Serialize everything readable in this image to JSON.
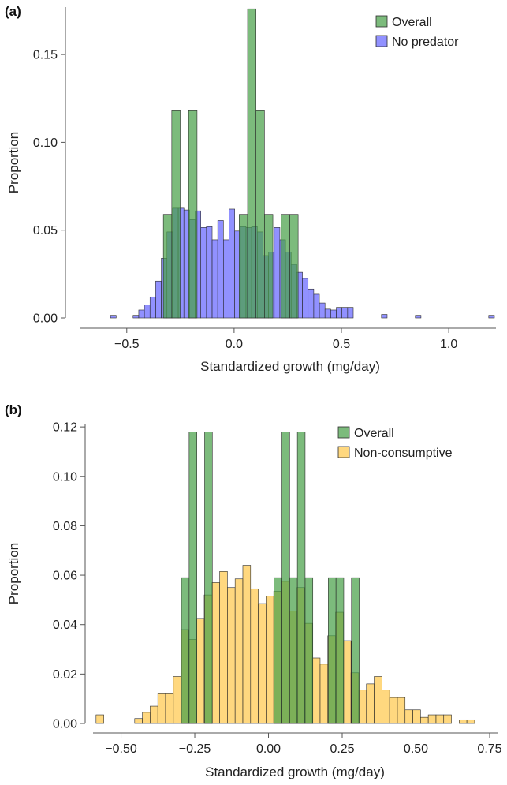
{
  "colors": {
    "overall": "#4aa14a",
    "no_predator": "#6666ff",
    "non_consumptive": "#ffc94d",
    "bar_edge": "#2b2b2b"
  },
  "chart_data": [
    {
      "type": "bar",
      "panel": "(a)",
      "xlabel": "Standardized growth (mg/day)",
      "ylabel": "Proportion",
      "xlim": [
        -0.76,
        1.22
      ],
      "ylim": [
        0,
        0.177
      ],
      "xticks": [
        -0.5,
        0.0,
        0.5,
        1.0
      ],
      "xtick_labels": [
        "−0.5",
        "0.0",
        "0.5",
        "1.0"
      ],
      "yticks": [
        0.0,
        0.05,
        0.1,
        0.15
      ],
      "ytick_labels": [
        "0.00",
        "0.05",
        "0.10",
        "0.15"
      ],
      "legend_position": "top-right",
      "series": [
        {
          "name": "Overall",
          "color_key": "overall",
          "opacity": 0.72,
          "bin_edges": [
            -0.3296,
            -0.2904,
            -0.2511,
            -0.2119,
            -0.1726,
            -0.1334,
            -0.0941,
            -0.0549,
            -0.0156,
            0.0236,
            0.0629,
            0.1021,
            0.1414,
            0.1806,
            0.2199,
            0.2591,
            0.2984,
            0.3376
          ],
          "values": [
            0.059,
            0.118,
            0.0,
            0.118,
            0.0,
            0.0,
            0.0,
            0.0,
            0.0,
            0.059,
            0.176,
            0.118,
            0.059,
            0.0,
            0.059,
            0.059,
            0.0
          ]
        },
        {
          "name": "No predator",
          "color_key": "no_predator",
          "opacity": 0.72,
          "bin_edges": [
            -0.5758,
            -0.5495,
            -0.5232,
            -0.4969,
            -0.4706,
            -0.4443,
            -0.418,
            -0.3917,
            -0.3654,
            -0.3391,
            -0.3128,
            -0.2865,
            -0.2602,
            -0.2339,
            -0.2076,
            -0.1813,
            -0.155,
            -0.1287,
            -0.1024,
            -0.0761,
            -0.0498,
            -0.0235,
            0.0028,
            0.0291,
            0.0554,
            0.0817,
            0.108,
            0.1343,
            0.1606,
            0.1869,
            0.2132,
            0.2395,
            0.2658,
            0.2921,
            0.3184,
            0.3447,
            0.371,
            0.3973,
            0.4236,
            0.4499,
            0.4762,
            0.5025,
            0.5288,
            0.5551,
            0.5814,
            0.6077,
            0.634,
            0.6603,
            0.6866,
            0.7129,
            0.7392,
            0.7655,
            0.7918,
            0.8181,
            0.8444,
            0.8707,
            0.897,
            0.9233,
            0.9496,
            0.9759,
            1.0022,
            1.0285,
            1.0548,
            1.0811,
            1.1074,
            1.1337,
            1.16,
            1.1863,
            1.2126
          ],
          "values": [
            0.0015,
            0.0,
            0.0,
            0.0,
            0.0015,
            0.0045,
            0.0075,
            0.012,
            0.021,
            0.034,
            0.049,
            0.0625,
            0.0625,
            0.0615,
            0.056,
            0.061,
            0.0515,
            0.052,
            0.0445,
            0.0555,
            0.0445,
            0.062,
            0.0495,
            0.052,
            0.0515,
            0.052,
            0.049,
            0.0355,
            0.0375,
            0.0515,
            0.0445,
            0.0375,
            0.0305,
            0.026,
            0.0225,
            0.0165,
            0.0135,
            0.0085,
            0.005,
            0.0045,
            0.006,
            0.006,
            0.006,
            0.0,
            0.0,
            0.0,
            0.0,
            0.0,
            0.002,
            0.0,
            0.0,
            0.0,
            0.0,
            0.0,
            0.0015,
            0.0,
            0.0,
            0.0,
            0.0,
            0.0,
            0.0,
            0.0,
            0.0,
            0.0,
            0.0,
            0.0,
            0.0,
            0.0015
          ]
        }
      ]
    },
    {
      "type": "bar",
      "panel": "(b)",
      "xlabel": "Standardized growth (mg/day)",
      "ylabel": "Proportion",
      "xlim": [
        -0.595,
        0.75
      ],
      "ylim": [
        0,
        0.121
      ],
      "xticks": [
        -0.5,
        -0.25,
        0.0,
        0.25,
        0.5,
        0.75
      ],
      "xtick_labels": [
        "−0.50",
        "−0.25",
        "0.00",
        "0.25",
        "0.50",
        "0.75"
      ],
      "yticks": [
        0.0,
        0.02,
        0.04,
        0.06,
        0.08,
        0.1,
        0.12
      ],
      "ytick_labels": [
        "0.00",
        "0.02",
        "0.04",
        "0.06",
        "0.08",
        "0.10",
        "0.12"
      ],
      "legend_position": "top-right",
      "series": [
        {
          "name": "Overall",
          "color_key": "overall",
          "opacity": 0.72,
          "bin_edges": [
            -0.2954,
            -0.2692,
            -0.2429,
            -0.2167,
            -0.1905,
            -0.1643,
            -0.1381,
            -0.1119,
            -0.0856,
            -0.0594,
            -0.0332,
            -0.007,
            0.0192,
            0.0455,
            0.0717,
            0.0979,
            0.1241,
            0.1503,
            0.1766,
            0.2028,
            0.229,
            0.2552,
            0.2814,
            0.3077,
            0.3339
          ],
          "values": [
            0.059,
            0.118,
            0.0,
            0.118,
            0.0,
            0.0,
            0.0,
            0.0,
            0.0,
            0.0,
            0.0,
            0.0,
            0.059,
            0.118,
            0.059,
            0.118,
            0.059,
            0.0,
            0.0,
            0.059,
            0.059,
            0.0,
            0.059,
            0.0
          ]
        },
        {
          "name": "Non-consumptive",
          "color_key": "non_consumptive",
          "opacity": 0.72,
          "bin_edges": [
            -0.5848,
            -0.5586,
            -0.5324,
            -0.5062,
            -0.48,
            -0.4538,
            -0.4276,
            -0.4014,
            -0.3752,
            -0.349,
            -0.3228,
            -0.2966,
            -0.2704,
            -0.2442,
            -0.218,
            -0.1918,
            -0.1656,
            -0.1394,
            -0.1132,
            -0.087,
            -0.0608,
            -0.0346,
            -0.0084,
            0.0178,
            0.044,
            0.0702,
            0.0964,
            0.1226,
            0.1488,
            0.175,
            0.2012,
            0.2274,
            0.2536,
            0.2798,
            0.306,
            0.3322,
            0.3584,
            0.3846,
            0.4108,
            0.437,
            0.4632,
            0.4894,
            0.5156,
            0.5418,
            0.568,
            0.5942,
            0.6204,
            0.6466,
            0.6728,
            0.699
          ],
          "values": [
            0.0035,
            0.0,
            0.0,
            0.0,
            0.0,
            0.002,
            0.0045,
            0.007,
            0.012,
            0.012,
            0.019,
            0.038,
            0.034,
            0.0425,
            0.052,
            0.057,
            0.0615,
            0.055,
            0.0585,
            0.064,
            0.0545,
            0.0485,
            0.0515,
            0.0535,
            0.0575,
            0.0455,
            0.055,
            0.0405,
            0.0265,
            0.024,
            0.0355,
            0.045,
            0.0335,
            0.0205,
            0.0135,
            0.016,
            0.019,
            0.0135,
            0.0105,
            0.0105,
            0.0055,
            0.0055,
            0.0025,
            0.0035,
            0.0035,
            0.0035,
            0.0,
            0.0015,
            0.0015
          ]
        }
      ]
    }
  ]
}
